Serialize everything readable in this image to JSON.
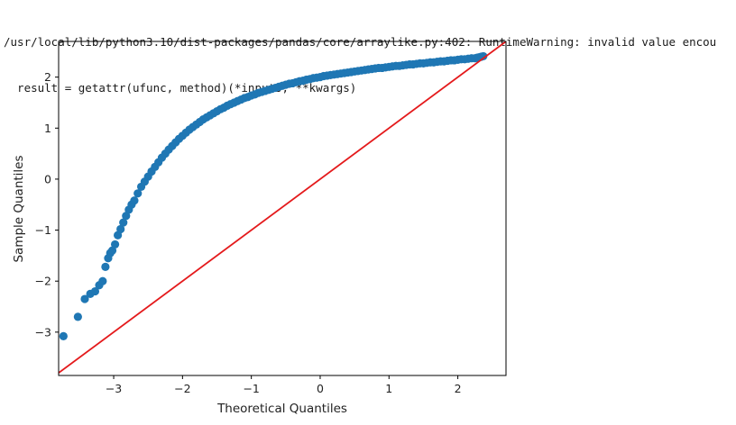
{
  "output": {
    "warning_lines": [
      "/usr/local/lib/python3.10/dist-packages/pandas/core/arraylike.py:402: RuntimeWarning: invalid value encou",
      "  result = getattr(ufunc, method)(*inputs, **kwargs)"
    ]
  },
  "colors": {
    "points": "#1f77b4",
    "reference_line": "#e41a1c",
    "axes": "#000000"
  },
  "chart_data": {
    "type": "scatter",
    "title": "",
    "xlabel": "Theoretical Quantiles",
    "ylabel": "Sample Quantiles",
    "xlim": [
      -3.8,
      2.7
    ],
    "ylim": [
      -3.85,
      2.7
    ],
    "xticks": [
      -3,
      -2,
      -1,
      0,
      1,
      2
    ],
    "xtick_labels": [
      "−3",
      "−2",
      "−1",
      "0",
      "1",
      "2"
    ],
    "yticks": [
      -3,
      -2,
      -1,
      0,
      1,
      2
    ],
    "ytick_labels": [
      "−3",
      "−2",
      "−1",
      "0",
      "1",
      "2"
    ],
    "grid": false,
    "legend": "none",
    "reference_line": {
      "slope": 1,
      "intercept": 0
    },
    "series": [
      {
        "x": [
          -3.73,
          -3.52,
          -3.42,
          -3.34,
          -3.27,
          -3.21,
          -3.16,
          -3.12,
          -3.08,
          -3.05,
          -3.02,
          -2.98,
          -2.94,
          -2.9,
          -2.86,
          -2.82,
          -2.78,
          -2.74,
          -2.7,
          -2.65,
          -2.6,
          -2.55,
          -2.5,
          -2.45,
          -2.4,
          -2.35,
          -2.3,
          -2.25,
          -2.2,
          -2.15,
          -2.1,
          -2.05,
          -2.0,
          -1.95,
          -1.9,
          -1.85,
          -1.8,
          -1.75,
          -1.7,
          -1.65,
          -1.6,
          -1.55,
          -1.5,
          -1.45,
          -1.4,
          -1.35,
          -1.3,
          -1.25,
          -1.2,
          -1.15,
          -1.1,
          -1.05,
          -1.0,
          -0.95,
          -0.9,
          -0.85,
          -0.8,
          -0.75,
          -0.7,
          -0.65,
          -0.6,
          -0.55,
          -0.5,
          -0.45,
          -0.4,
          -0.35,
          -0.3,
          -0.25,
          -0.2,
          -0.15,
          -0.1,
          -0.05,
          0.0,
          0.05,
          0.1,
          0.15,
          0.2,
          0.25,
          0.3,
          0.35,
          0.4,
          0.45,
          0.5,
          0.55,
          0.6,
          0.65,
          0.7,
          0.75,
          0.8,
          0.85,
          0.9,
          0.95,
          1.0,
          1.05,
          1.1,
          1.15,
          1.2,
          1.25,
          1.3,
          1.35,
          1.4,
          1.45,
          1.5,
          1.55,
          1.6,
          1.65,
          1.7,
          1.75,
          1.8,
          1.85,
          1.9,
          1.95,
          2.0,
          2.05,
          2.1,
          2.15,
          2.2,
          2.25,
          2.28,
          2.31,
          2.34,
          2.37
        ],
        "y": [
          -3.08,
          -2.7,
          -2.35,
          -2.25,
          -2.2,
          -2.08,
          -2.0,
          -1.72,
          -1.55,
          -1.45,
          -1.4,
          -1.28,
          -1.1,
          -0.98,
          -0.85,
          -0.72,
          -0.6,
          -0.5,
          -0.42,
          -0.28,
          -0.15,
          -0.05,
          0.05,
          0.15,
          0.24,
          0.33,
          0.42,
          0.5,
          0.58,
          0.65,
          0.72,
          0.79,
          0.85,
          0.91,
          0.97,
          1.02,
          1.07,
          1.12,
          1.17,
          1.21,
          1.25,
          1.29,
          1.33,
          1.37,
          1.4,
          1.44,
          1.47,
          1.5,
          1.53,
          1.56,
          1.59,
          1.61,
          1.64,
          1.66,
          1.69,
          1.71,
          1.73,
          1.75,
          1.77,
          1.79,
          1.81,
          1.83,
          1.85,
          1.87,
          1.88,
          1.9,
          1.92,
          1.93,
          1.95,
          1.96,
          1.98,
          1.99,
          2.0,
          2.02,
          2.03,
          2.04,
          2.05,
          2.06,
          2.07,
          2.08,
          2.09,
          2.1,
          2.11,
          2.12,
          2.13,
          2.14,
          2.15,
          2.16,
          2.17,
          2.18,
          2.18,
          2.19,
          2.2,
          2.21,
          2.22,
          2.22,
          2.23,
          2.24,
          2.25,
          2.25,
          2.26,
          2.27,
          2.27,
          2.28,
          2.29,
          2.29,
          2.3,
          2.31,
          2.31,
          2.32,
          2.33,
          2.33,
          2.34,
          2.35,
          2.35,
          2.36,
          2.37,
          2.37,
          2.38,
          2.39,
          2.4,
          2.41
        ]
      }
    ]
  }
}
